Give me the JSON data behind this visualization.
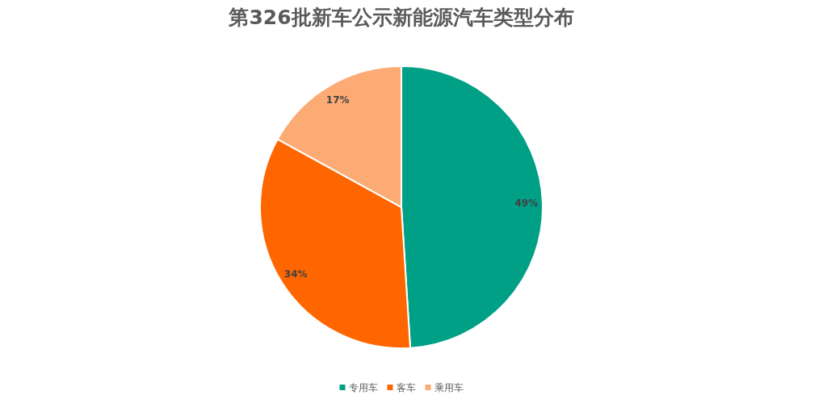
{
  "chart_data": {
    "type": "pie",
    "title": "第326批新车公示新能源汽车类型分布",
    "categories": [
      "专用车",
      "客车",
      "乘用车"
    ],
    "values": [
      49,
      34,
      17
    ],
    "colors": [
      "#00a086",
      "#ff6600",
      "#fdab74"
    ],
    "value_labels": [
      "49%",
      "34%",
      "17%"
    ],
    "legend": "bottom"
  }
}
